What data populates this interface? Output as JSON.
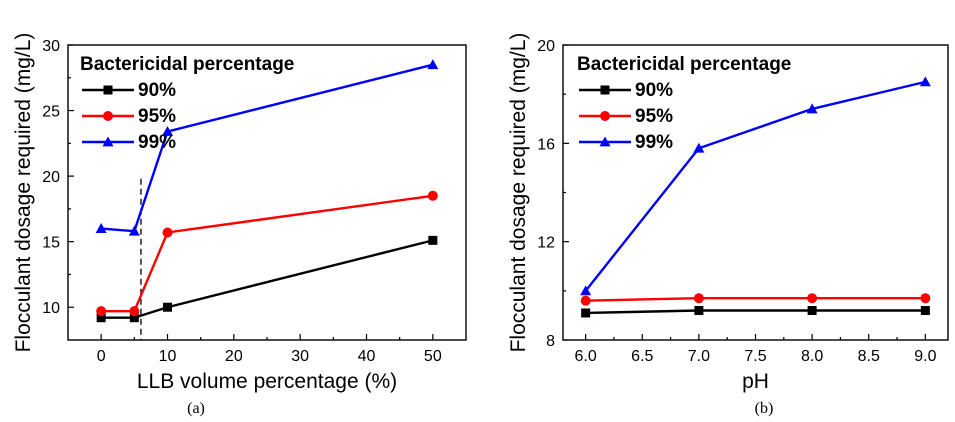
{
  "chart_data": [
    {
      "type": "line",
      "caption": "(a)",
      "title": "",
      "xlabel": "LLB volume percentage (%)",
      "ylabel": "Flocculant dosage required (mg/L)",
      "xlim": [
        -5,
        55
      ],
      "ylim": [
        7.5,
        30
      ],
      "xticks": [
        0,
        10,
        20,
        30,
        40,
        50
      ],
      "yticks": [
        10,
        15,
        20,
        25,
        30
      ],
      "legend_title": "Bactericidal percentage",
      "legend_position": "top-left",
      "annotation": "dashed vertical line at x = 6",
      "dashed_line_x": 6,
      "series": [
        {
          "name": "90%",
          "color": "#000000",
          "marker": "square",
          "x": [
            0,
            5,
            10,
            50
          ],
          "values": [
            9.2,
            9.2,
            10.0,
            15.1
          ]
        },
        {
          "name": "95%",
          "color": "#ff0000",
          "marker": "circle",
          "x": [
            0,
            5,
            10,
            50
          ],
          "values": [
            9.7,
            9.7,
            15.7,
            18.5
          ]
        },
        {
          "name": "99%",
          "color": "#0000ff",
          "marker": "triangle",
          "x": [
            0,
            5,
            10,
            50
          ],
          "values": [
            16.0,
            15.8,
            23.4,
            28.5
          ]
        }
      ]
    },
    {
      "type": "line",
      "caption": "(b)",
      "title": "",
      "xlabel": "pH",
      "ylabel": "Flocculant dosage required (mg/L)",
      "xlim": [
        5.8,
        9.2
      ],
      "ylim": [
        8,
        20
      ],
      "xticks": [
        6.0,
        6.5,
        7.0,
        7.5,
        8.0,
        8.5,
        9.0
      ],
      "xtick_labels": [
        "6.0",
        "6.5",
        "7.0",
        "7.5",
        "8.0",
        "8.5",
        "9.0"
      ],
      "yticks": [
        8,
        12,
        16,
        20
      ],
      "legend_title": "Bactericidal percentage",
      "legend_position": "top-left",
      "series": [
        {
          "name": "90%",
          "color": "#000000",
          "marker": "square",
          "x": [
            6.0,
            7.0,
            8.0,
            9.0
          ],
          "values": [
            9.1,
            9.2,
            9.2,
            9.2
          ]
        },
        {
          "name": "95%",
          "color": "#ff0000",
          "marker": "circle",
          "x": [
            6.0,
            7.0,
            8.0,
            9.0
          ],
          "values": [
            9.6,
            9.7,
            9.7,
            9.7
          ]
        },
        {
          "name": "99%",
          "color": "#0000ff",
          "marker": "triangle",
          "x": [
            6.0,
            7.0,
            8.0,
            9.0
          ],
          "values": [
            10.0,
            15.8,
            17.4,
            18.5
          ]
        }
      ]
    }
  ]
}
